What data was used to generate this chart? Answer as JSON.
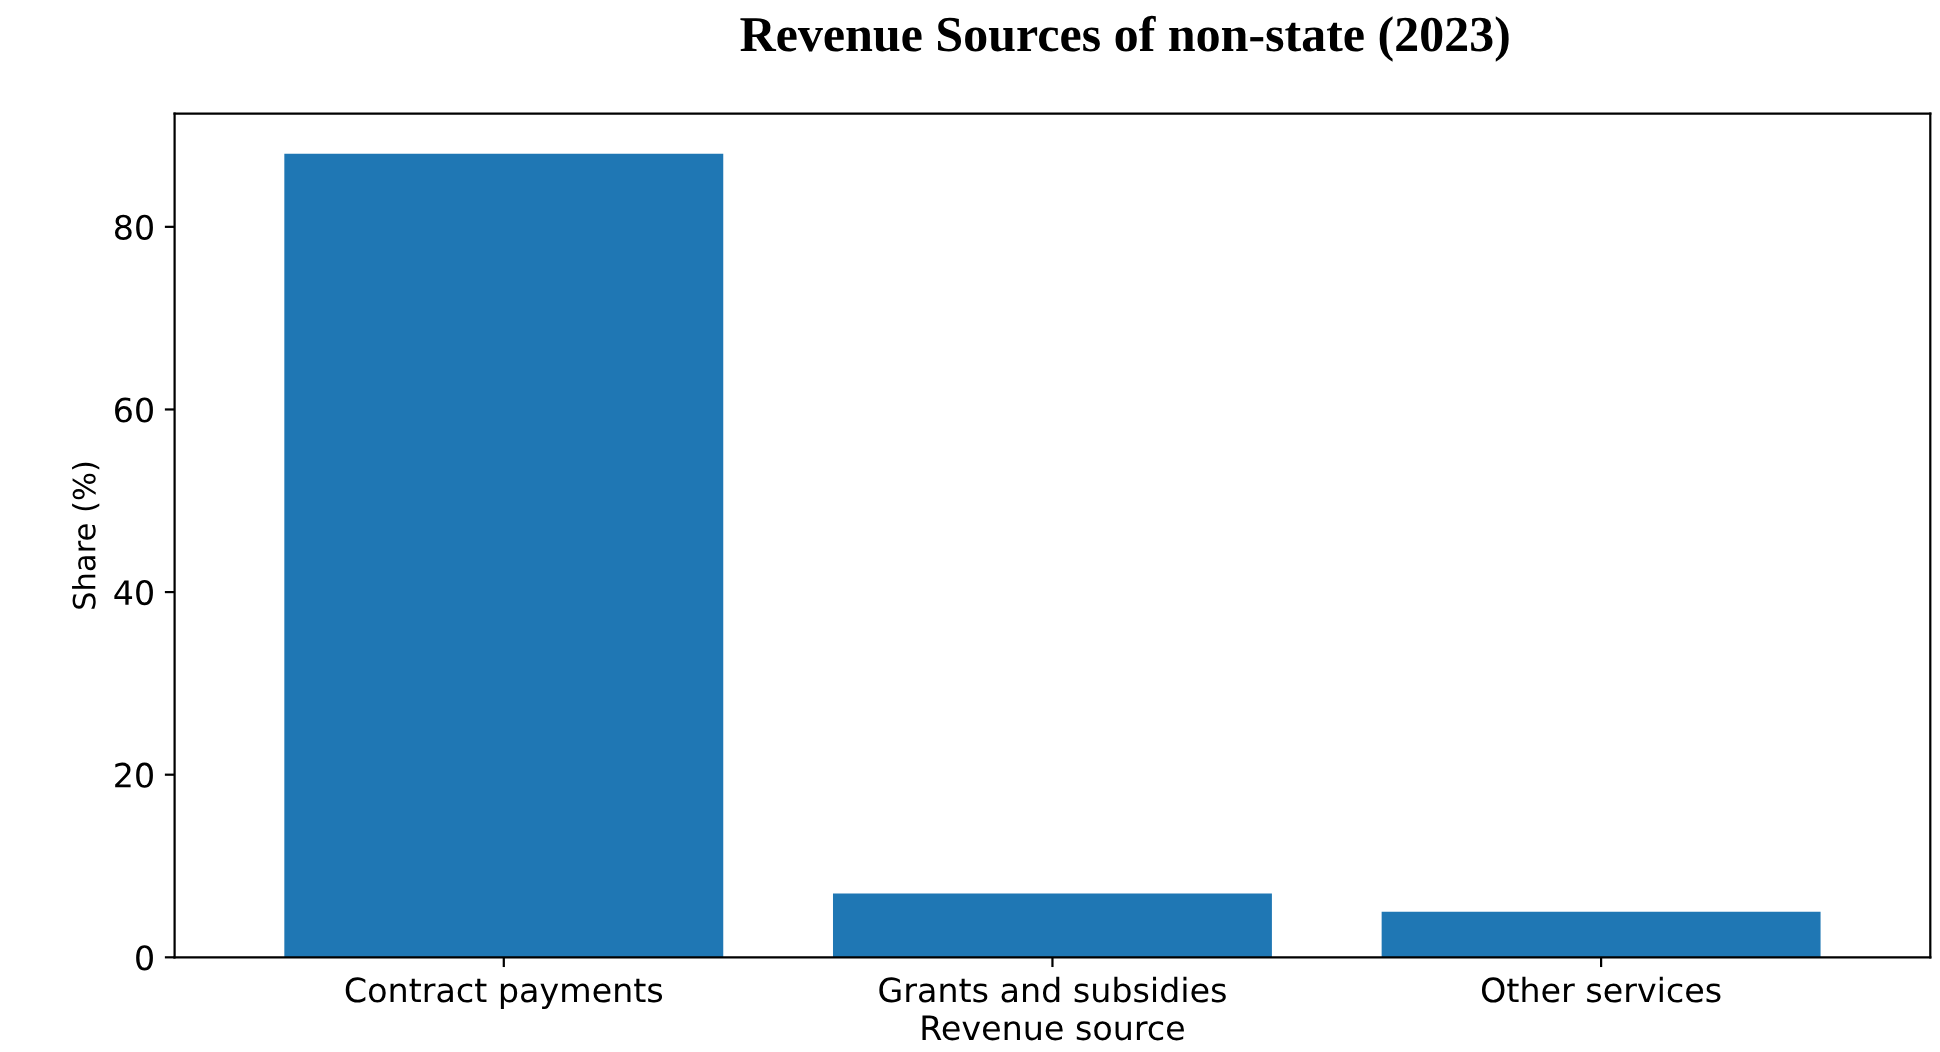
{
  "chart_data": {
    "type": "bar",
    "title": "Revenue Sources of non-state (2023)",
    "xlabel": "Revenue source",
    "ylabel": "Share (%)",
    "categories": [
      "Contract payments",
      "Grants and subsidies",
      "Other services"
    ],
    "values": [
      88,
      7,
      5
    ],
    "color": "#1f77b4",
    "ylim": [
      0,
      92.4
    ],
    "yticks": [
      0,
      20,
      40,
      60,
      80
    ],
    "grid": false
  }
}
